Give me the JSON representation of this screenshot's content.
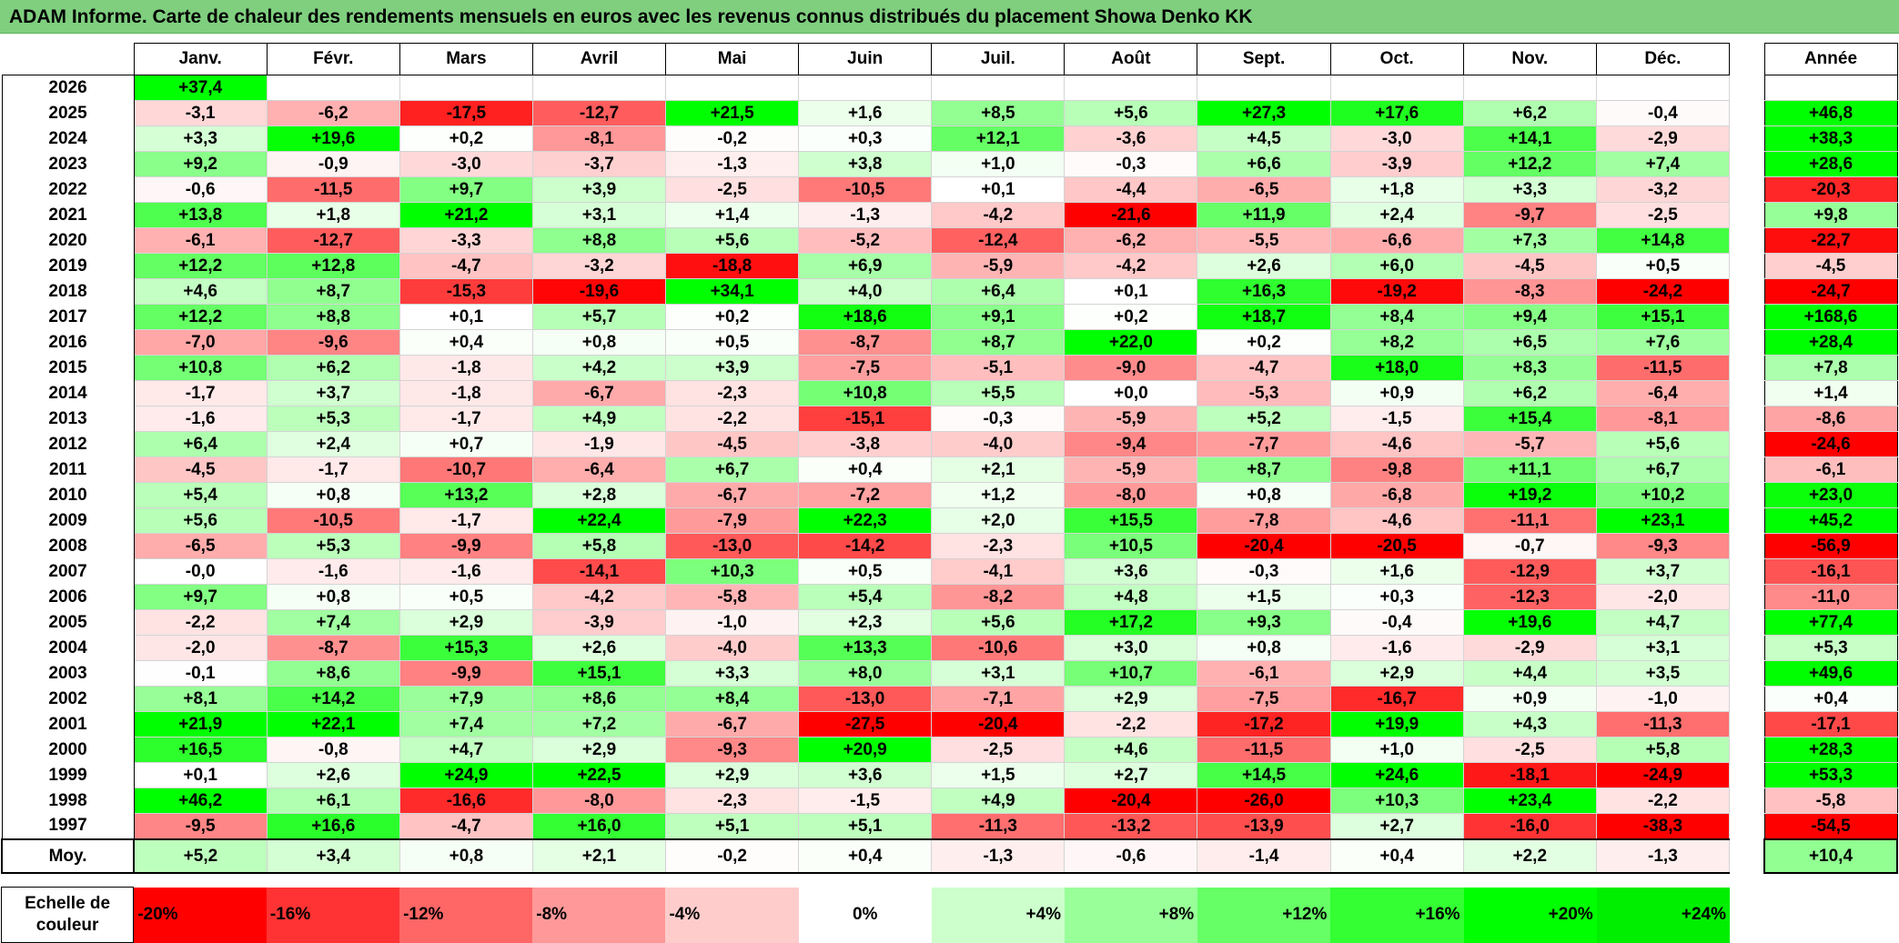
{
  "title": "ADAM Informe. Carte de chaleur des rendements mensuels en euros avec les revenus connus distribués du placement Showa Denko KK",
  "months": [
    "Janv.",
    "Févr.",
    "Mars",
    "Avril",
    "Mai",
    "Juin",
    "Juil.",
    "Août",
    "Sept.",
    "Oct.",
    "Nov.",
    "Déc."
  ],
  "annual_header": "Année",
  "avg_label": "Moy.",
  "chart_data": {
    "type": "heatmap",
    "title": "ADAM Informe. Carte de chaleur des rendements mensuels en euros avec les revenus connus distribués du placement Showa Denko KK",
    "columns": [
      "Janv.",
      "Févr.",
      "Mars",
      "Avril",
      "Mai",
      "Juin",
      "Juil.",
      "Août",
      "Sept.",
      "Oct.",
      "Nov.",
      "Déc."
    ],
    "rows": [
      {
        "year": "2026",
        "values": [
          "+37,4",
          "",
          "",
          "",
          "",
          "",
          "",
          "",
          "",
          "",
          "",
          ""
        ],
        "annual": ""
      },
      {
        "year": "2025",
        "values": [
          "-3,1",
          "-6,2",
          "-17,5",
          "-12,7",
          "+21,5",
          "+1,6",
          "+8,5",
          "+5,6",
          "+27,3",
          "+17,6",
          "+6,2",
          "-0,4"
        ],
        "annual": "+46,8"
      },
      {
        "year": "2024",
        "values": [
          "+3,3",
          "+19,6",
          "+0,2",
          "-8,1",
          "-0,2",
          "+0,3",
          "+12,1",
          "-3,6",
          "+4,5",
          "-3,0",
          "+14,1",
          "-2,9"
        ],
        "annual": "+38,3"
      },
      {
        "year": "2023",
        "values": [
          "+9,2",
          "-0,9",
          "-3,0",
          "-3,7",
          "-1,3",
          "+3,8",
          "+1,0",
          "-0,3",
          "+6,6",
          "-3,9",
          "+12,2",
          "+7,4"
        ],
        "annual": "+28,6"
      },
      {
        "year": "2022",
        "values": [
          "-0,6",
          "-11,5",
          "+9,7",
          "+3,9",
          "-2,5",
          "-10,5",
          "+0,1",
          "-4,4",
          "-6,5",
          "+1,8",
          "+3,3",
          "-3,2"
        ],
        "annual": "-20,3"
      },
      {
        "year": "2021",
        "values": [
          "+13,8",
          "+1,8",
          "+21,2",
          "+3,1",
          "+1,4",
          "-1,3",
          "-4,2",
          "-21,6",
          "+11,9",
          "+2,4",
          "-9,7",
          "-2,5"
        ],
        "annual": "+9,8"
      },
      {
        "year": "2020",
        "values": [
          "-6,1",
          "-12,7",
          "-3,3",
          "+8,8",
          "+5,6",
          "-5,2",
          "-12,4",
          "-6,2",
          "-5,5",
          "-6,6",
          "+7,3",
          "+14,8"
        ],
        "annual": "-22,7"
      },
      {
        "year": "2019",
        "values": [
          "+12,2",
          "+12,8",
          "-4,7",
          "-3,2",
          "-18,8",
          "+6,9",
          "-5,9",
          "-4,2",
          "+2,6",
          "+6,0",
          "-4,5",
          "+0,5"
        ],
        "annual": "-4,5"
      },
      {
        "year": "2018",
        "values": [
          "+4,6",
          "+8,7",
          "-15,3",
          "-19,6",
          "+34,1",
          "+4,0",
          "+6,4",
          "+0,1",
          "+16,3",
          "-19,2",
          "-8,3",
          "-24,2"
        ],
        "annual": "-24,7"
      },
      {
        "year": "2017",
        "values": [
          "+12,2",
          "+8,8",
          "+0,1",
          "+5,7",
          "+0,2",
          "+18,6",
          "+9,1",
          "+0,2",
          "+18,7",
          "+8,4",
          "+9,4",
          "+15,1"
        ],
        "annual": "+168,6"
      },
      {
        "year": "2016",
        "values": [
          "-7,0",
          "-9,6",
          "+0,4",
          "+0,8",
          "+0,5",
          "-8,7",
          "+8,7",
          "+22,0",
          "+0,2",
          "+8,2",
          "+6,5",
          "+7,6"
        ],
        "annual": "+28,4"
      },
      {
        "year": "2015",
        "values": [
          "+10,8",
          "+6,2",
          "-1,8",
          "+4,2",
          "+3,9",
          "-7,5",
          "-5,1",
          "-9,0",
          "-4,7",
          "+18,0",
          "+8,3",
          "-11,5"
        ],
        "annual": "+7,8"
      },
      {
        "year": "2014",
        "values": [
          "-1,7",
          "+3,7",
          "-1,8",
          "-6,7",
          "-2,3",
          "+10,8",
          "+5,5",
          "+0,0",
          "-5,3",
          "+0,9",
          "+6,2",
          "-6,4"
        ],
        "annual": "+1,4"
      },
      {
        "year": "2013",
        "values": [
          "-1,6",
          "+5,3",
          "-1,7",
          "+4,9",
          "-2,2",
          "-15,1",
          "-0,3",
          "-5,9",
          "+5,2",
          "-1,5",
          "+15,4",
          "-8,1"
        ],
        "annual": "-8,6"
      },
      {
        "year": "2012",
        "values": [
          "+6,4",
          "+2,4",
          "+0,7",
          "-1,9",
          "-4,5",
          "-3,8",
          "-4,0",
          "-9,4",
          "-7,7",
          "-4,6",
          "-5,7",
          "+5,6"
        ],
        "annual": "-24,6"
      },
      {
        "year": "2011",
        "values": [
          "-4,5",
          "-1,7",
          "-10,7",
          "-6,4",
          "+6,7",
          "+0,4",
          "+2,1",
          "-5,9",
          "+8,7",
          "-9,8",
          "+11,1",
          "+6,7"
        ],
        "annual": "-6,1"
      },
      {
        "year": "2010",
        "values": [
          "+5,4",
          "+0,8",
          "+13,2",
          "+2,8",
          "-6,7",
          "-7,2",
          "+1,2",
          "-8,0",
          "+0,8",
          "-6,8",
          "+19,2",
          "+10,2"
        ],
        "annual": "+23,0"
      },
      {
        "year": "2009",
        "values": [
          "+5,6",
          "-10,5",
          "-1,7",
          "+22,4",
          "-7,9",
          "+22,3",
          "+2,0",
          "+15,5",
          "-7,8",
          "-4,6",
          "-11,1",
          "+23,1"
        ],
        "annual": "+45,2"
      },
      {
        "year": "2008",
        "values": [
          "-6,5",
          "+5,3",
          "-9,9",
          "+5,8",
          "-13,0",
          "-14,2",
          "-2,3",
          "+10,5",
          "-20,4",
          "-20,5",
          "-0,7",
          "-9,3"
        ],
        "annual": "-56,9"
      },
      {
        "year": "2007",
        "values": [
          "-0,0",
          "-1,6",
          "-1,6",
          "-14,1",
          "+10,3",
          "+0,5",
          "-4,1",
          "+3,6",
          "-0,3",
          "+1,6",
          "-12,9",
          "+3,7"
        ],
        "annual": "-16,1"
      },
      {
        "year": "2006",
        "values": [
          "+9,7",
          "+0,8",
          "+0,5",
          "-4,2",
          "-5,8",
          "+5,4",
          "-8,2",
          "+4,8",
          "+1,5",
          "+0,3",
          "-12,3",
          "-2,0"
        ],
        "annual": "-11,0"
      },
      {
        "year": "2005",
        "values": [
          "-2,2",
          "+7,4",
          "+2,9",
          "-3,9",
          "-1,0",
          "+2,3",
          "+5,6",
          "+17,2",
          "+9,3",
          "-0,4",
          "+19,6",
          "+4,7"
        ],
        "annual": "+77,4"
      },
      {
        "year": "2004",
        "values": [
          "-2,0",
          "-8,7",
          "+15,3",
          "+2,6",
          "-4,0",
          "+13,3",
          "-10,6",
          "+3,0",
          "+0,8",
          "-1,6",
          "-2,9",
          "+3,1"
        ],
        "annual": "+5,3"
      },
      {
        "year": "2003",
        "values": [
          "-0,1",
          "+8,6",
          "-9,9",
          "+15,1",
          "+3,3",
          "+8,0",
          "+3,1",
          "+10,7",
          "-6,1",
          "+2,9",
          "+4,4",
          "+3,5"
        ],
        "annual": "+49,6"
      },
      {
        "year": "2002",
        "values": [
          "+8,1",
          "+14,2",
          "+7,9",
          "+8,6",
          "+8,4",
          "-13,0",
          "-7,1",
          "+2,9",
          "-7,5",
          "-16,7",
          "+0,9",
          "-1,0"
        ],
        "annual": "+0,4"
      },
      {
        "year": "2001",
        "values": [
          "+21,9",
          "+22,1",
          "+7,4",
          "+7,2",
          "-6,7",
          "-27,5",
          "-20,4",
          "-2,2",
          "-17,2",
          "+19,9",
          "+4,3",
          "-11,3"
        ],
        "annual": "-17,1"
      },
      {
        "year": "2000",
        "values": [
          "+16,5",
          "-0,8",
          "+4,7",
          "+2,9",
          "-9,3",
          "+20,9",
          "-2,5",
          "+4,6",
          "-11,5",
          "+1,0",
          "-2,5",
          "+5,8"
        ],
        "annual": "+28,3"
      },
      {
        "year": "1999",
        "values": [
          "+0,1",
          "+2,6",
          "+24,9",
          "+22,5",
          "+2,9",
          "+3,6",
          "+1,5",
          "+2,7",
          "+14,5",
          "+24,6",
          "-18,1",
          "-24,9"
        ],
        "annual": "+53,3"
      },
      {
        "year": "1998",
        "values": [
          "+46,2",
          "+6,1",
          "-16,6",
          "-8,0",
          "-2,3",
          "-1,5",
          "+4,9",
          "-20,4",
          "-26,0",
          "+10,3",
          "+23,4",
          "-2,2"
        ],
        "annual": "-5,8"
      },
      {
        "year": "1997",
        "values": [
          "-9,5",
          "+16,6",
          "-4,7",
          "+16,0",
          "+5,1",
          "+5,1",
          "-11,3",
          "-13,2",
          "-13,9",
          "+2,7",
          "-16,0",
          "-38,3"
        ],
        "annual": "-54,5"
      }
    ],
    "averages": [
      "+5,2",
      "+3,4",
      "+0,8",
      "+2,1",
      "-0,2",
      "+0,4",
      "-1,3",
      "-0,6",
      "-1,4",
      "+0,4",
      "+2,2",
      "-1,3"
    ],
    "average_annual": "+10,4"
  },
  "scale": {
    "label": "Echelle de couleur",
    "items": [
      {
        "text": "-20%",
        "color": "#ff0000"
      },
      {
        "text": "-16%",
        "color": "#ff3333"
      },
      {
        "text": "-12%",
        "color": "#ff6666"
      },
      {
        "text": "-8%",
        "color": "#ff9999"
      },
      {
        "text": "-4%",
        "color": "#ffcccc"
      },
      {
        "text": "0%",
        "color": "#ffffff"
      },
      {
        "text": "+4%",
        "color": "#ccffcc"
      },
      {
        "text": "+8%",
        "color": "#99ff99"
      },
      {
        "text": "+12%",
        "color": "#66ff66"
      },
      {
        "text": "+16%",
        "color": "#33ff33"
      },
      {
        "text": "+20%",
        "color": "#00ff00"
      },
      {
        "text": "+24%",
        "color": "#00ee00"
      }
    ]
  },
  "colors": {
    "title_bg": "#7fcf7f",
    "negative_max": "#ff0000",
    "neutral": "#ffffff",
    "positive_max": "#00ff00"
  }
}
